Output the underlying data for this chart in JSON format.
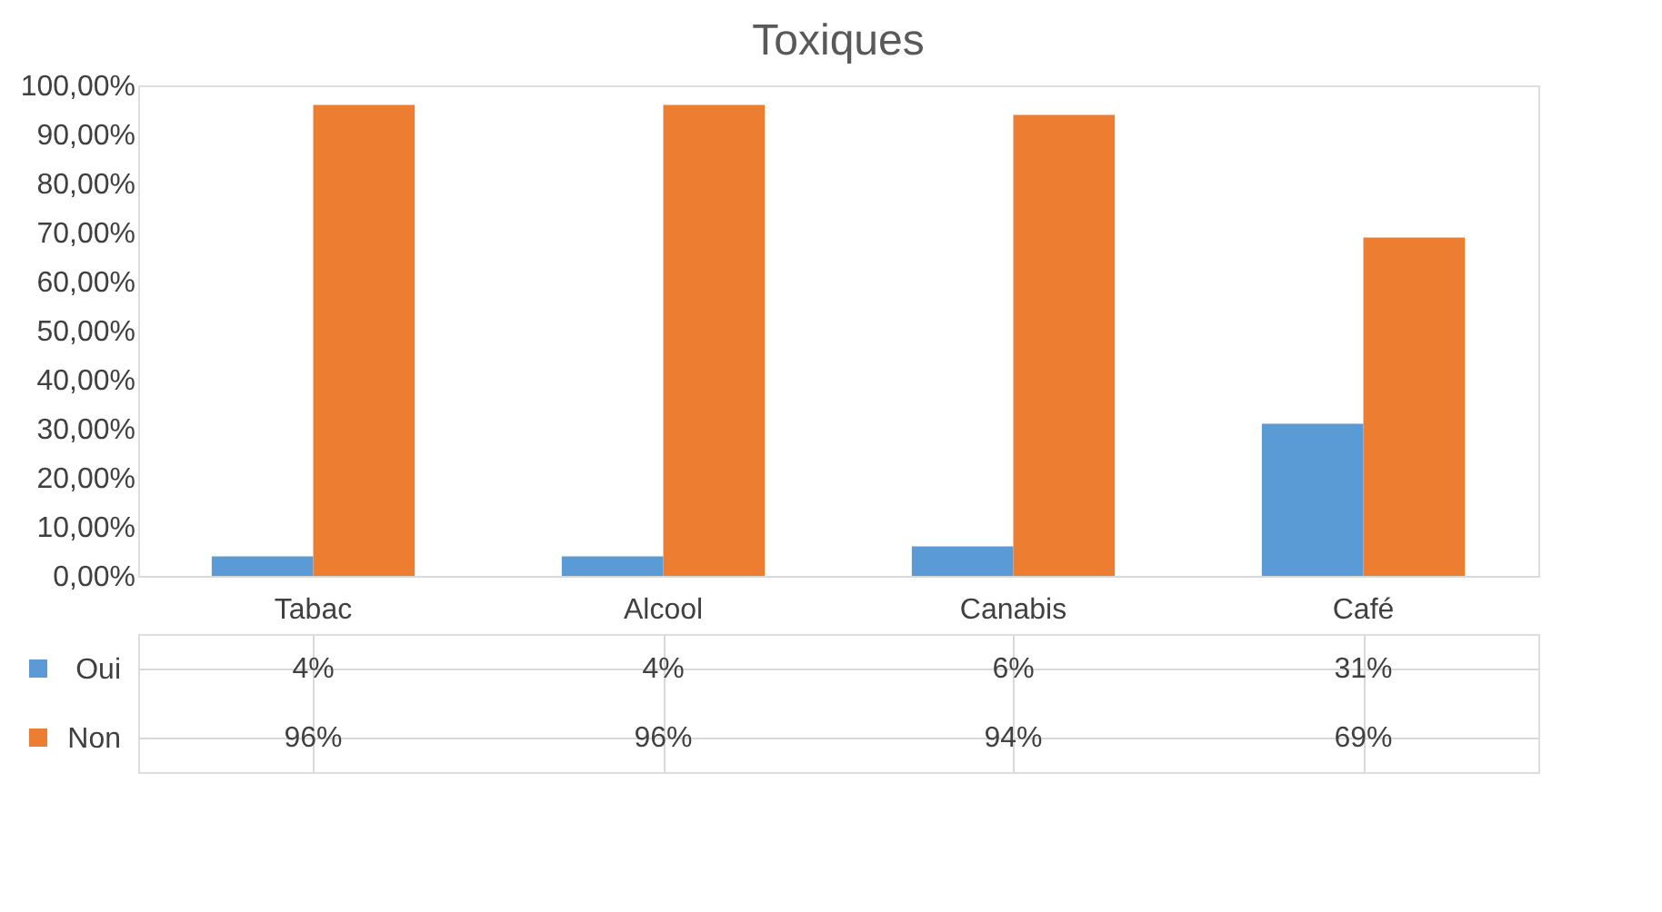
{
  "chart_data": {
    "type": "bar",
    "title": "Toxiques",
    "categories": [
      "Tabac",
      "Alcool",
      "Canabis",
      "Café"
    ],
    "series": [
      {
        "name": "Oui",
        "color": "#5b9bd5",
        "values": [
          4,
          4,
          6,
          31
        ],
        "value_labels": [
          "4%",
          "4%",
          "6%",
          "31%"
        ]
      },
      {
        "name": "Non",
        "color": "#ed7d31",
        "values": [
          96,
          96,
          94,
          69
        ],
        "value_labels": [
          "96%",
          "96%",
          "94%",
          "69%"
        ]
      }
    ],
    "ylim": [
      0,
      100
    ],
    "yticks": [
      {
        "value": 0,
        "label": "0,00%"
      },
      {
        "value": 10,
        "label": "10,00%"
      },
      {
        "value": 20,
        "label": "20,00%"
      },
      {
        "value": 30,
        "label": "30,00%"
      },
      {
        "value": 40,
        "label": "40,00%"
      },
      {
        "value": 50,
        "label": "50,00%"
      },
      {
        "value": 60,
        "label": "60,00%"
      },
      {
        "value": 70,
        "label": "70,00%"
      },
      {
        "value": 80,
        "label": "80,00%"
      },
      {
        "value": 90,
        "label": "90,00%"
      },
      {
        "value": 100,
        "label": "100,00%"
      }
    ],
    "grid": false,
    "legend": "bottom"
  }
}
